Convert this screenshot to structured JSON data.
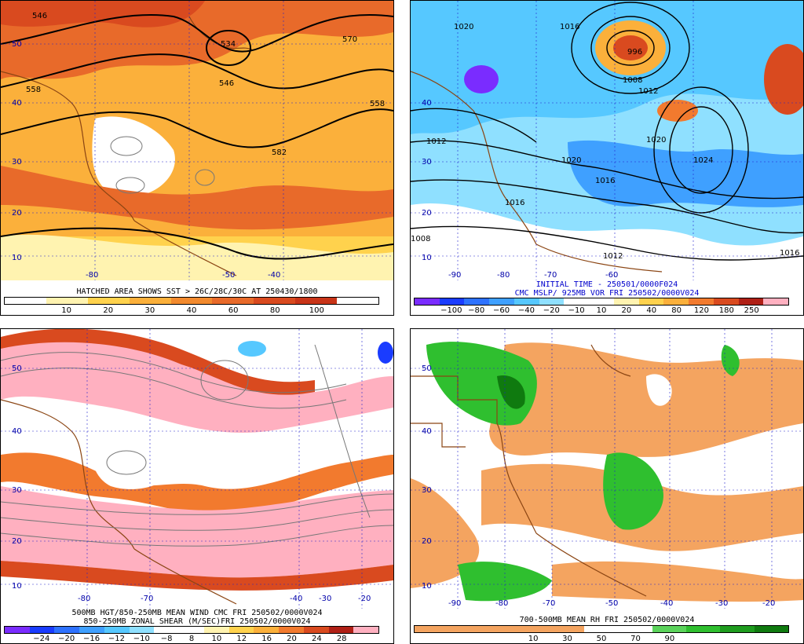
{
  "panels": [
    {
      "id": "p1",
      "caption1": "HATCHED AREA SHOWS SST > 26C/28C/30C AT 250430/1800",
      "caption2": "",
      "colorbar": {
        "colors": [
          "#ffffff",
          "#fff3b0",
          "#ffd24d",
          "#fbb03b",
          "#f28a2e",
          "#e86a2a",
          "#d94a1f",
          "#c83418",
          "#ffffff"
        ],
        "labels": [
          "10",
          "20",
          "30",
          "40",
          "60",
          "80",
          "100"
        ]
      },
      "contour_labels": [
        "546",
        "534",
        "546",
        "570",
        "558",
        "558",
        "582"
      ],
      "lat_labels": [
        "50",
        "40",
        "30",
        "20",
        "10"
      ],
      "lon_labels": [
        "-80",
        "-50",
        "-40"
      ]
    },
    {
      "id": "p2",
      "caption1": "INITIAL TIME - 250501/0000F024",
      "caption2": "CMC MSLP/ 925MB VOR FRI 250502/0000V024",
      "colorbar": {
        "colors": [
          "#7a2cff",
          "#1a3cff",
          "#2e72ff",
          "#3fa0ff",
          "#56c8ff",
          "#8fe0ff",
          "#ffffff",
          "#ffffff",
          "#fff3b0",
          "#ffd24d",
          "#fbb03b",
          "#f27a2e",
          "#d94a1f",
          "#b02016",
          "#ffb0c0"
        ],
        "labels": [
          "−100",
          "−80",
          "−60",
          "−40",
          "−20",
          "−10",
          "10",
          "20",
          "40",
          "80",
          "120",
          "180",
          "250"
        ]
      },
      "contour_labels": [
        "1020",
        "1016",
        "996",
        "1008",
        "1012",
        "1020",
        "1024",
        "1020",
        "1016",
        "1012",
        "1016",
        "1008",
        "1012",
        "1016"
      ],
      "lat_labels": [
        "40",
        "30",
        "20",
        "10"
      ],
      "lon_labels": [
        "-90",
        "-80",
        "-70",
        "-60"
      ]
    },
    {
      "id": "p3",
      "caption1": "500MB HGT/850-250MB MEAN WIND CMC FRI 250502/0000V024",
      "caption2": "850-250MB ZONAL SHEAR (M/SEC)FRI 250502/0000V024",
      "colorbar": {
        "colors": [
          "#7a2cff",
          "#1a3cff",
          "#2e72ff",
          "#3fa0ff",
          "#56c8ff",
          "#8fe0ff",
          "#ffffff",
          "#ffffff",
          "#fff3b0",
          "#ffd24d",
          "#fbb03b",
          "#f27a2e",
          "#d94a1f",
          "#b02016",
          "#ffb0c0"
        ],
        "labels": [
          "−24",
          "−20",
          "−16",
          "−12",
          "−10",
          "−8",
          "8",
          "10",
          "12",
          "16",
          "20",
          "24",
          "28"
        ]
      },
      "lat_labels": [
        "50",
        "40",
        "30",
        "20",
        "10"
      ],
      "lon_labels": [
        "-80",
        "-70",
        "-40",
        "-30",
        "-20"
      ]
    },
    {
      "id": "p4",
      "caption1": "700-500MB MEAN RH FRI 250502/0000V024",
      "caption2": "",
      "colorbar": {
        "colors": [
          "#f4a460",
          "#f4a460",
          "#f4a460",
          "#f4a460",
          "#f4a460",
          "#ffffff",
          "#ffffff",
          "#5bd35b",
          "#2fbf2f",
          "#1e9c1e",
          "#0f7a0f"
        ],
        "labels": [
          "10",
          "30",
          "50",
          "70",
          "90"
        ]
      },
      "lat_labels": [
        "50",
        "40",
        "30",
        "20",
        "10"
      ],
      "lon_labels": [
        "-90",
        "-80",
        "-70",
        "-50",
        "-40",
        "-30",
        "-20"
      ]
    }
  ],
  "colors": {
    "coast": "#8b4513",
    "grid": "#2222cc",
    "contour": "#000000",
    "gray_contour": "#777777"
  }
}
